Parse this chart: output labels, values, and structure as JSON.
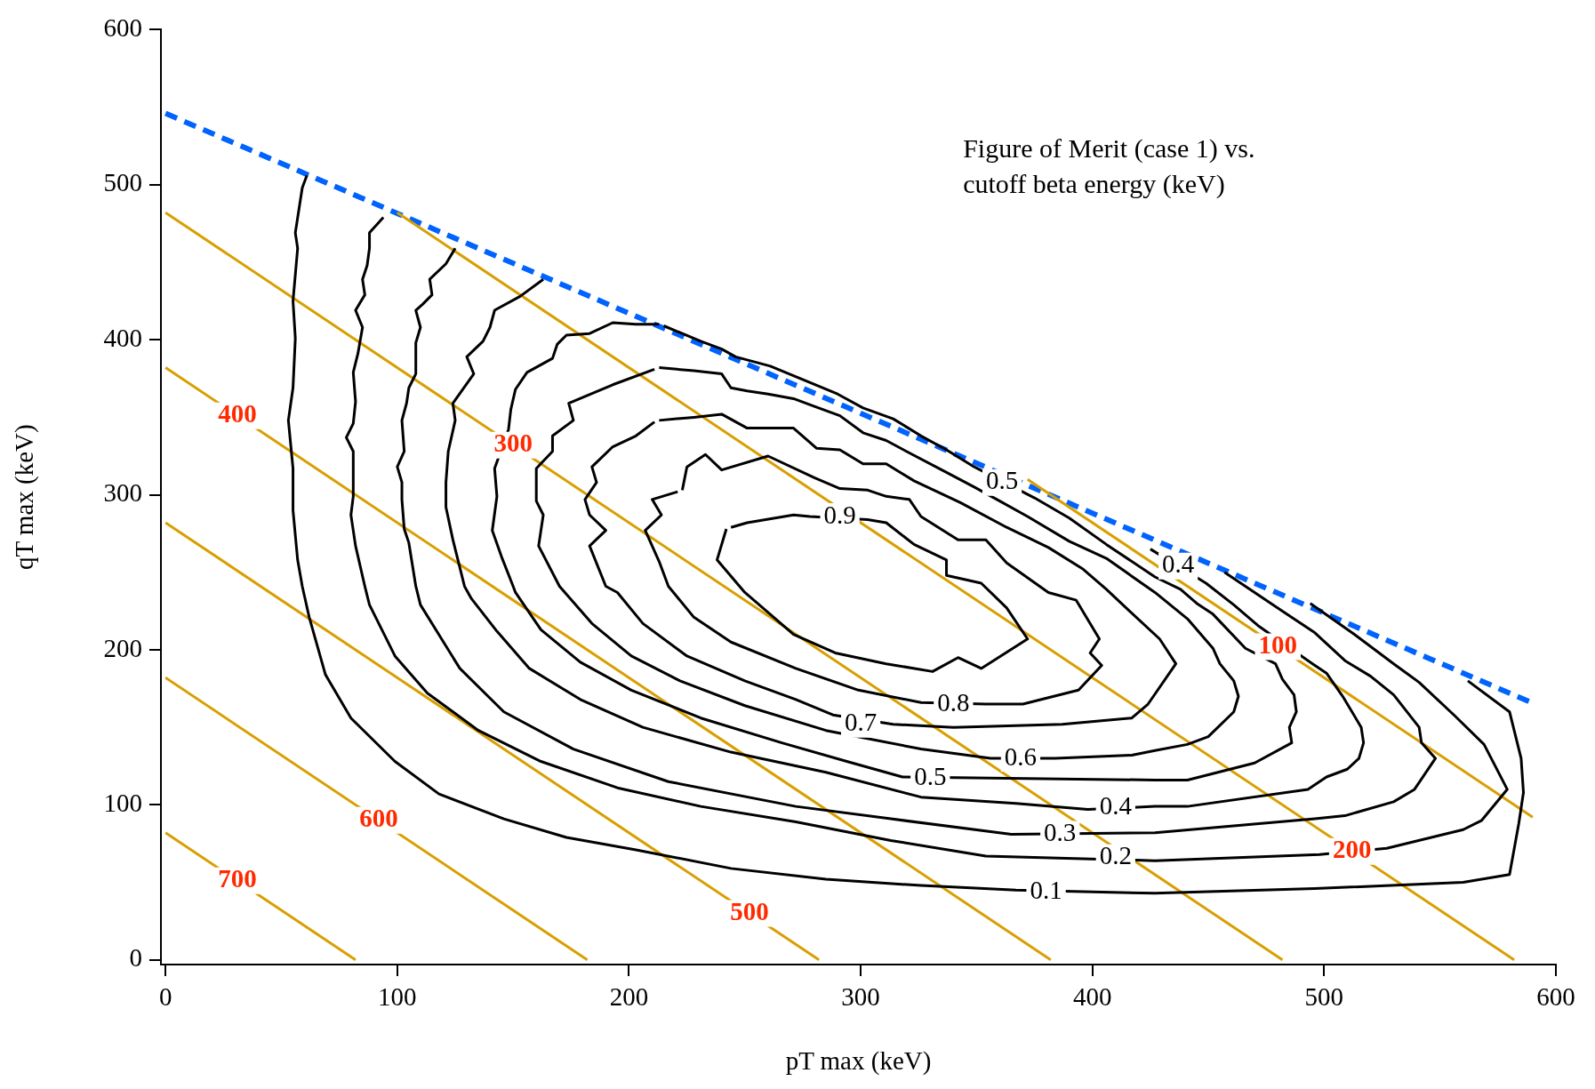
{
  "chart_data": {
    "type": "line",
    "title": "Figure of Merit (case 1) vs. cutoff beta energy (keV)",
    "xlabel": "pT max (keV)",
    "ylabel": "qT max (keV)",
    "xlim": [
      -2,
      600
    ],
    "ylim": [
      -3,
      600
    ],
    "xticks": [
      0,
      100,
      200,
      300,
      400,
      500,
      600
    ],
    "yticks": [
      0,
      100,
      200,
      300,
      400,
      500,
      600
    ],
    "marker": "none",
    "series": [
      {
        "color": "#000000",
        "x": [
          61,
          59,
          56,
          57,
          55,
          56,
          55,
          53,
          55,
          55,
          57,
          59,
          62,
          69,
          80,
          99,
          118,
          146,
          173,
          203,
          244,
          285,
          326,
          367,
          427,
          496,
          560,
          580,
          584,
          586,
          585,
          580,
          562
        ],
        "values": [
          506,
          498,
          469,
          459,
          425,
          401,
          369,
          348,
          317,
          290,
          258,
          241,
          221,
          184,
          156,
          128,
          107,
          91,
          79,
          71,
          59,
          52,
          48,
          45,
          43,
          46,
          50,
          55,
          88,
          108,
          130,
          160,
          180
        ]
      },
      {
        "color": "#000000",
        "x": [
          94,
          88,
          88,
          87,
          85,
          86,
          82,
          85,
          83,
          81,
          82,
          81,
          78,
          81,
          81,
          80,
          82,
          86,
          88,
          99,
          113,
          135,
          162,
          195,
          231,
          272,
          313,
          354,
          427,
          498,
          527,
          560,
          568,
          579,
          569,
          556,
          541,
          530,
          513,
          494
        ],
        "values": [
          479,
          469,
          459,
          448,
          439,
          429,
          419,
          408,
          391,
          379,
          360,
          346,
          337,
          328,
          299,
          287,
          267,
          241,
          229,
          196,
          172,
          148,
          128,
          111,
          99,
          89,
          77,
          67,
          64,
          68,
          72,
          84,
          90,
          110,
          139,
          158,
          179,
          191,
          210,
          230
        ]
      },
      {
        "color": "#000000",
        "x": [
          125,
          121,
          114,
          115,
          111,
          108,
          110,
          108,
          108,
          105,
          104,
          102,
          103,
          100,
          102,
          102,
          103,
          105,
          108,
          110,
          127,
          146,
          176,
          217,
          272,
          313,
          365,
          427,
          496,
          509,
          530,
          539,
          548,
          542,
          541,
          530,
          520,
          509,
          496,
          482,
          467,
          457
        ],
        "values": [
          459,
          449,
          439,
          429,
          423,
          419,
          408,
          398,
          378,
          369,
          359,
          348,
          328,
          318,
          308,
          297,
          278,
          269,
          241,
          229,
          188,
          160,
          136,
          115,
          99,
          91,
          81,
          82,
          91,
          93,
          102,
          110,
          130,
          140,
          150,
          171,
          183,
          193,
          211,
          225,
          240,
          250
        ]
      },
      {
        "color": "#000000",
        "x": [
          163,
          153,
          142,
          140,
          137,
          130,
          133,
          124,
          125,
          122,
          121,
          121,
          124,
          129,
          132,
          143,
          157,
          179,
          206,
          244,
          285,
          326,
          367,
          398,
          427,
          441,
          493,
          501,
          510,
          515,
          517,
          516,
          508,
          501,
          495,
          472,
          461,
          449,
          425
        ],
        "values": [
          439,
          428,
          419,
          408,
          399,
          389,
          378,
          359,
          348,
          328,
          308,
          292,
          271,
          241,
          233,
          212,
          188,
          168,
          150,
          134,
          121,
          105,
          101,
          97,
          99,
          99,
          110,
          118,
          123,
          130,
          140,
          150,
          170,
          185,
          191,
          215,
          229,
          243,
          265
        ]
      },
      {
        "color": "#000000",
        "x": [
          213,
          203,
          193,
          183,
          173,
          169,
          167,
          156,
          151,
          149,
          148,
          142,
          143,
          141,
          145,
          150,
          151,
          162,
          179,
          201,
          231,
          266,
          294,
          318,
          427,
          441,
          470,
          486,
          485,
          488,
          487,
          482,
          479,
          466,
          452,
          445,
          438,
          427,
          406,
          390,
          375,
          349,
          337,
          326,
          314,
          301,
          290,
          261,
          246,
          240,
          231,
          215
        ],
        "values": [
          410,
          410,
          411,
          404,
          403,
          397,
          388,
          379,
          368,
          355,
          342,
          317,
          299,
          277,
          260,
          241,
          237,
          213,
          192,
          174,
          156,
          140,
          128,
          118,
          116,
          116,
          127,
          140,
          150,
          160,
          171,
          181,
          191,
          201,
          223,
          230,
          239,
          247,
          268,
          285,
          298,
          318,
          329,
          338,
          349,
          356,
          365,
          383,
          389,
          394,
          399,
          409
        ]
      },
      {
        "color": "#000000",
        "x": [
          213,
          228,
          240,
          244,
          251,
          260,
          271,
          280,
          291,
          301,
          311,
          321,
          335,
          349,
          360,
          372,
          390,
          406,
          427,
          441,
          452,
          455,
          461,
          463,
          461,
          450,
          441,
          427,
          417,
          384,
          356,
          326,
          285,
          250,
          222,
          201,
          184,
          170,
          161,
          163,
          160,
          160,
          167,
          167,
          176,
          174,
          193,
          211
        ],
        "values": [
          382,
          380,
          378,
          369,
          367,
          365,
          362,
          357,
          351,
          340,
          335,
          327,
          316,
          305,
          296,
          286,
          270,
          259,
          237,
          220,
          201,
          191,
          180,
          170,
          160,
          144,
          139,
          135,
          132,
          130,
          130,
          136,
          148,
          164,
          180,
          196,
          217,
          241,
          267,
          287,
          296,
          317,
          328,
          338,
          348,
          359,
          371,
          381
        ]
      },
      {
        "color": "#000000",
        "x": [
          213,
          228,
          240,
          251,
          271,
          281,
          291,
          301,
          311,
          323,
          343,
          363,
          381,
          396,
          406,
          416,
          429,
          436,
          424,
          417,
          387,
          340,
          314,
          288,
          272,
          250,
          225,
          206,
          195,
          190,
          183,
          190,
          183,
          181,
          186,
          184,
          193,
          203,
          211
        ],
        "values": [
          348,
          350,
          352,
          343,
          343,
          330,
          329,
          320,
          320,
          309,
          295,
          279,
          266,
          252,
          239,
          225,
          207,
          191,
          165,
          156,
          152,
          150,
          152,
          158,
          168,
          180,
          196,
          217,
          237,
          241,
          267,
          277,
          287,
          297,
          308,
          318,
          331,
          338,
          347
        ]
      },
      {
        "color": "#000000",
        "x": [
          223,
          225,
          233,
          240,
          260,
          280,
          291,
          303,
          311,
          321,
          326,
          342,
          354,
          363,
          381,
          393,
          403,
          399,
          404,
          394,
          370,
          354,
          326,
          299,
          272,
          244,
          228,
          217,
          213,
          207,
          214,
          210,
          221
        ],
        "values": [
          303,
          318,
          326,
          316,
          325,
          311,
          304,
          303,
          299,
          297,
          286,
          271,
          271,
          256,
          237,
          232,
          207,
          198,
          190,
          174,
          165,
          165,
          166,
          174,
          188,
          205,
          221,
          241,
          257,
          277,
          287,
          297,
          302
        ]
      },
      {
        "color": "#000000",
        "x": [
          242,
          238,
          250,
          271,
          289,
          311,
          331,
          342,
          352,
          372,
          363,
          352,
          337,
          337,
          323,
          311,
          303,
          278,
          271,
          251,
          244
        ],
        "values": [
          278,
          258,
          237,
          210,
          198,
          191,
          186,
          195,
          188,
          207,
          227,
          243,
          248,
          258,
          268,
          282,
          284,
          286,
          287,
          282,
          279
        ]
      },
      {
        "color": "#d89f00",
        "x": [
          372,
          590
        ],
        "values": [
          310,
          92
        ]
      },
      {
        "color": "#d89f00",
        "x": [
          100,
          582
        ],
        "values": [
          482,
          0
        ]
      },
      {
        "color": "#d89f00",
        "x": [
          0,
          482
        ],
        "values": [
          482,
          0
        ]
      },
      {
        "color": "#d89f00",
        "x": [
          0,
          382
        ],
        "values": [
          382,
          0
        ]
      },
      {
        "color": "#d89f00",
        "x": [
          0,
          282
        ],
        "values": [
          282,
          0
        ]
      },
      {
        "color": "#d89f00",
        "x": [
          0,
          182
        ],
        "values": [
          182,
          0
        ]
      },
      {
        "color": "#d89f00",
        "x": [
          0,
          82
        ],
        "values": [
          82,
          0
        ]
      },
      {
        "color": "#0063ff",
        "line_style": "dashed",
        "x": [
          0,
          591
        ],
        "values": [
          546,
          165
        ]
      }
    ],
    "annotations": [
      {
        "text": "0.9",
        "x": 291,
        "y": 286
      },
      {
        "text": "0.8",
        "x": 340,
        "y": 165
      },
      {
        "text": "0.7",
        "x": 300,
        "y": 152
      },
      {
        "text": "0.6",
        "x": 369,
        "y": 130
      },
      {
        "text": "0.5",
        "x": 330,
        "y": 117
      },
      {
        "text": "0.4",
        "x": 410,
        "y": 98
      },
      {
        "text": "0.3",
        "x": 386,
        "y": 81
      },
      {
        "text": "0.2",
        "x": 410,
        "y": 66
      },
      {
        "text": "0.1",
        "x": 380,
        "y": 44
      },
      {
        "text": "0.5",
        "x": 361,
        "y": 308
      },
      {
        "text": "0.4",
        "x": 437,
        "y": 254
      },
      {
        "text": "100",
        "x": 480,
        "y": 202
      },
      {
        "text": "200",
        "x": 512,
        "y": 70
      },
      {
        "text": "300",
        "x": 150,
        "y": 332
      },
      {
        "text": "400",
        "x": 31,
        "y": 351
      },
      {
        "text": "500",
        "x": 252,
        "y": 30
      },
      {
        "text": "600",
        "x": 92,
        "y": 90
      },
      {
        "text": "700",
        "x": 31,
        "y": 51
      }
    ]
  }
}
